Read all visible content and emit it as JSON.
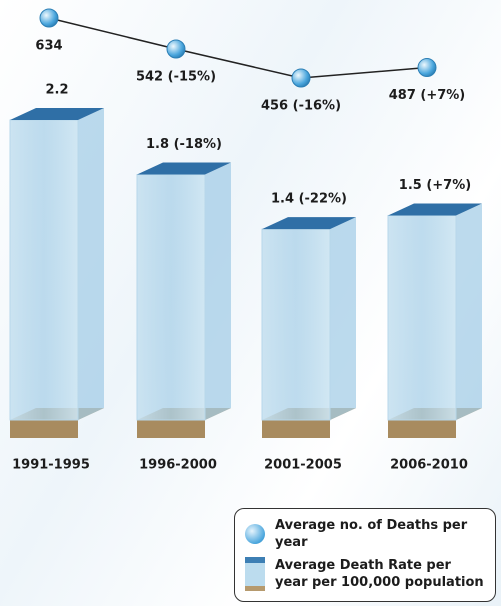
{
  "chart_data": {
    "type": "bar",
    "categories": [
      "1991-1995",
      "1996-2000",
      "2001-2005",
      "2006-2010"
    ],
    "series": [
      {
        "name": "Average no. of Deaths per year",
        "type": "line",
        "color": "#4aa6dd",
        "values": [
          634,
          542,
          456,
          487
        ],
        "value_labels": [
          "634",
          "542 (-15%)",
          "456 (-16%)",
          "487 (+7%)"
        ]
      },
      {
        "name": "Average Death Rate per year per 100,000 population",
        "type": "bar",
        "color": "#9fcbe6",
        "values": [
          2.2,
          1.8,
          1.4,
          1.5
        ],
        "value_labels": [
          "2.2",
          "1.8 (-18%)",
          "1.4 (-22%)",
          "1.5 (+7%)"
        ]
      }
    ]
  }
}
